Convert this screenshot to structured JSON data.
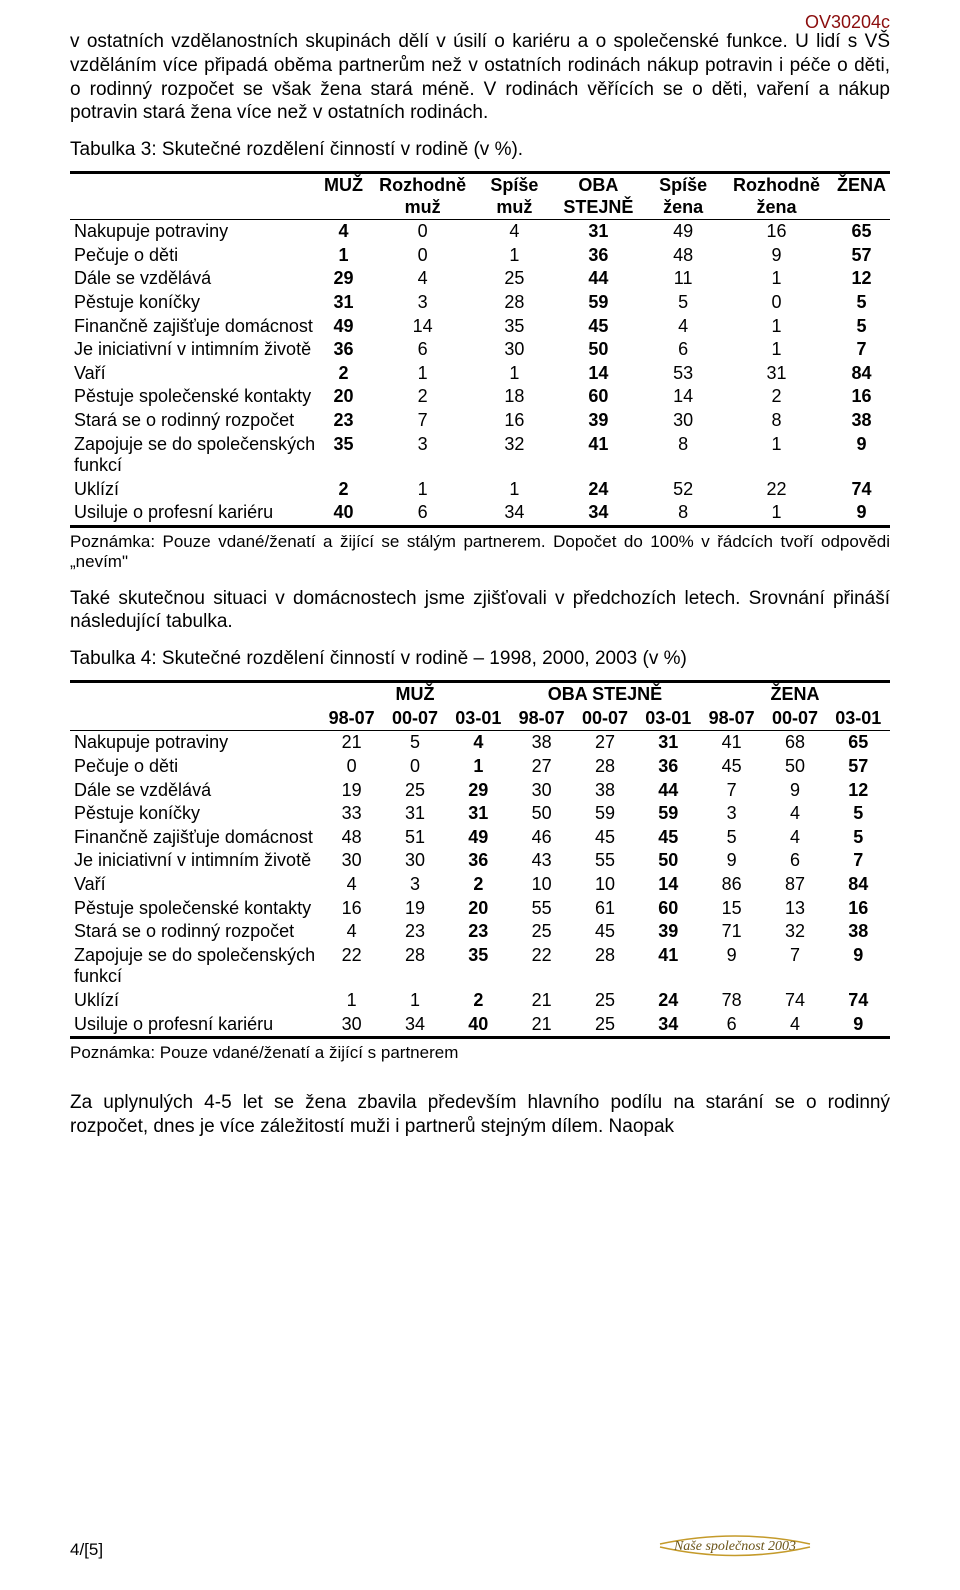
{
  "doc_id": "OV30204c",
  "intro": "v ostatních vzdělanostních skupinách dělí v úsilí o kariéru a o společenské funkce. U lidí s VŠ vzděláním více připadá oběma partnerům než v ostatních rodinách nákup potravin i péče o děti, o rodinný rozpočet se však žena stará méně. V rodinách věřících se o děti, vaření a nákup potravin stará žena více než v ostatních rodinách.",
  "t3_title": "Tabulka 3: Skutečné rozdělení činností v rodině (v %).",
  "t3_headers": {
    "muz": "MUŽ",
    "rozh_muz": "Rozhodně muž",
    "spise_muz": "Spíše muž",
    "oba": "OBA STEJNĚ",
    "spise_zena": "Spíše žena",
    "rozh_zena": "Rozhodně žena",
    "zena": "ŽENA"
  },
  "t3_rows": [
    {
      "label": "Nakupuje potraviny",
      "v": [
        "4",
        "0",
        "4",
        "31",
        "49",
        "16",
        "65"
      ]
    },
    {
      "label": "Pečuje o děti",
      "v": [
        "1",
        "0",
        "1",
        "36",
        "48",
        "9",
        "57"
      ]
    },
    {
      "label": "Dále se vzdělává",
      "v": [
        "29",
        "4",
        "25",
        "44",
        "11",
        "1",
        "12"
      ]
    },
    {
      "label": "Pěstuje koníčky",
      "v": [
        "31",
        "3",
        "28",
        "59",
        "5",
        "0",
        "5"
      ]
    },
    {
      "label": "Finančně zajišťuje domácnost",
      "v": [
        "49",
        "14",
        "35",
        "45",
        "4",
        "1",
        "5"
      ]
    },
    {
      "label": "Je iniciativní v intimním životě",
      "v": [
        "36",
        "6",
        "30",
        "50",
        "6",
        "1",
        "7"
      ]
    },
    {
      "label": "Vaří",
      "v": [
        "2",
        "1",
        "1",
        "14",
        "53",
        "31",
        "84"
      ]
    },
    {
      "label": "Pěstuje společenské kontakty",
      "v": [
        "20",
        "2",
        "18",
        "60",
        "14",
        "2",
        "16"
      ]
    },
    {
      "label": "Stará se o rodinný rozpočet",
      "v": [
        "23",
        "7",
        "16",
        "39",
        "30",
        "8",
        "38"
      ]
    },
    {
      "label": "Zapojuje se do společenských funkcí",
      "v": [
        "35",
        "3",
        "32",
        "41",
        "8",
        "1",
        "9"
      ]
    },
    {
      "label": "Uklízí",
      "v": [
        "2",
        "1",
        "1",
        "24",
        "52",
        "22",
        "74"
      ]
    },
    {
      "label": "Usiluje o profesní kariéru",
      "v": [
        "40",
        "6",
        "34",
        "34",
        "8",
        "1",
        "9"
      ]
    }
  ],
  "t3_note": "Poznámka: Pouze vdané/ženatí a žijící se stálým partnerem. Dopočet do 100% v řádcích tvoří odpovědi „nevím\"",
  "mid_para": "Také skutečnou situaci v domácnostech jsme zjišťovali v předchozích letech. Srovnání přináší následující tabulka.",
  "t4_title": "Tabulka 4: Skutečné rozdělení činností v rodině – 1998, 2000, 2003 (v %)",
  "t4_headers": {
    "muz": "MUŽ",
    "oba": "OBA STEJNĚ",
    "zena": "ŽENA",
    "y1": "98-07",
    "y2": "00-07",
    "y3": "03-01"
  },
  "t4_rows": [
    {
      "label": "Nakupuje potraviny",
      "v": [
        "21",
        "5",
        "4",
        "38",
        "27",
        "31",
        "41",
        "68",
        "65"
      ]
    },
    {
      "label": "Pečuje o děti",
      "v": [
        "0",
        "0",
        "1",
        "27",
        "28",
        "36",
        "45",
        "50",
        "57"
      ]
    },
    {
      "label": "Dále se vzdělává",
      "v": [
        "19",
        "25",
        "29",
        "30",
        "38",
        "44",
        "7",
        "9",
        "12"
      ]
    },
    {
      "label": "Pěstuje koníčky",
      "v": [
        "33",
        "31",
        "31",
        "50",
        "59",
        "59",
        "3",
        "4",
        "5"
      ]
    },
    {
      "label": "Finančně zajišťuje domácnost",
      "v": [
        "48",
        "51",
        "49",
        "46",
        "45",
        "45",
        "5",
        "4",
        "5"
      ]
    },
    {
      "label": "Je iniciativní v intimním životě",
      "v": [
        "30",
        "30",
        "36",
        "43",
        "55",
        "50",
        "9",
        "6",
        "7"
      ]
    },
    {
      "label": "Vaří",
      "v": [
        "4",
        "3",
        "2",
        "10",
        "10",
        "14",
        "86",
        "87",
        "84"
      ]
    },
    {
      "label": "Pěstuje společenské kontakty",
      "v": [
        "16",
        "19",
        "20",
        "55",
        "61",
        "60",
        "15",
        "13",
        "16"
      ]
    },
    {
      "label": "Stará se o rodinný rozpočet",
      "v": [
        "4",
        "23",
        "23",
        "25",
        "45",
        "39",
        "71",
        "32",
        "38"
      ]
    },
    {
      "label": "Zapojuje se do společenských funkcí",
      "v": [
        "22",
        "28",
        "35",
        "22",
        "28",
        "41",
        "9",
        "7",
        "9"
      ]
    },
    {
      "label": "Uklízí",
      "v": [
        "1",
        "1",
        "2",
        "21",
        "25",
        "24",
        "78",
        "74",
        "74"
      ]
    },
    {
      "label": "Usiluje o profesní kariéru",
      "v": [
        "30",
        "34",
        "40",
        "21",
        "25",
        "34",
        "6",
        "4",
        "9"
      ]
    }
  ],
  "t4_note": "Poznámka: Pouze vdané/ženatí a žijící s partnerem",
  "closing": "Za uplynulých 4-5 let se žena zbavila především hlavního podílu na starání se o rodinný rozpočet, dnes je více záležitostí muži i partnerů stejným dílem. Naopak",
  "page_num": "4/[5]",
  "logo_text": "Naše společnost 2003",
  "bold_cols_t3": [
    0,
    3,
    6
  ],
  "bold_cols_t4": [
    2,
    5,
    8
  ],
  "colors": {
    "doc_id": "#8b0d0d",
    "text": "#000000",
    "logo": "#8b6a1f",
    "rule": "#000000"
  }
}
